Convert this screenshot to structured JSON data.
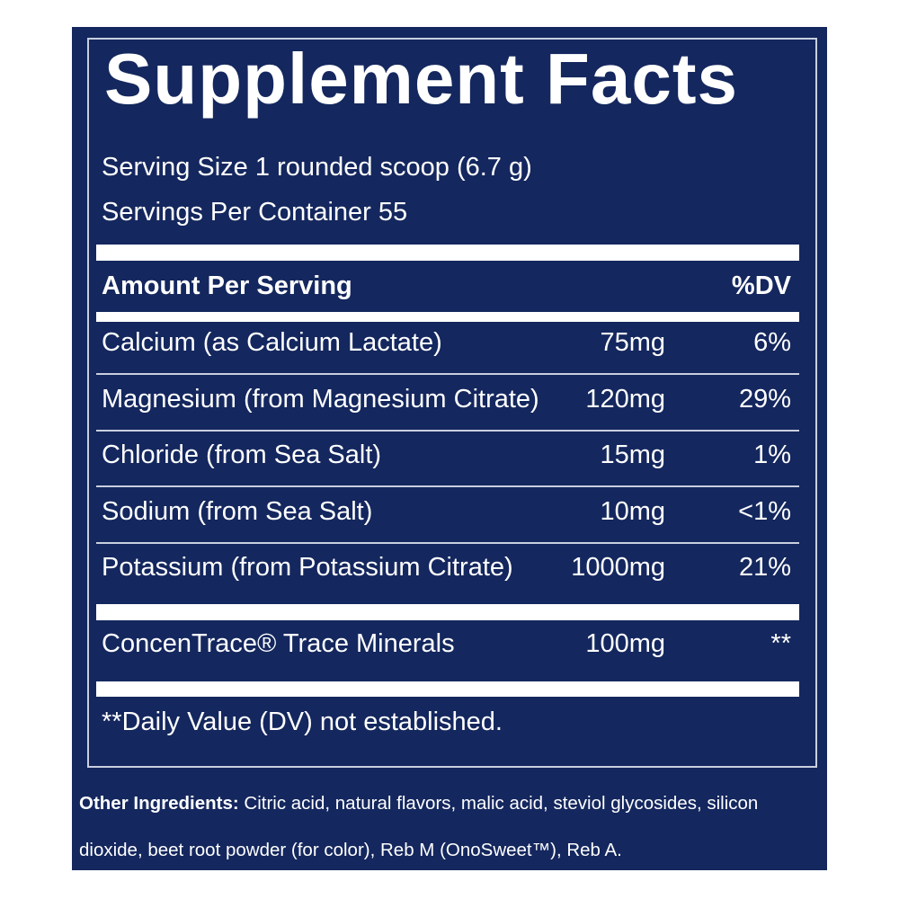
{
  "title": "Supplement Facts",
  "serving_size": "Serving Size 1 rounded scoop (6.7 g)",
  "servings_per_container": "Servings Per Container 55",
  "header": {
    "amount": "Amount Per Serving",
    "dv": "%DV"
  },
  "rows": [
    {
      "name": "Calcium (as Calcium Lactate)",
      "amount": "75mg",
      "dv": "6%"
    },
    {
      "name": "Magnesium (from Magnesium Citrate)",
      "amount": "120mg",
      "dv": "29%"
    },
    {
      "name": "Chloride (from Sea Salt)",
      "amount": "15mg",
      "dv": "1%"
    },
    {
      "name": "Sodium (from Sea Salt)",
      "amount": "10mg",
      "dv": "<1%"
    },
    {
      "name": "Potassium (from Potassium Citrate)",
      "amount": "1000mg",
      "dv": "21%"
    }
  ],
  "trace": {
    "name": "ConcenTrace® Trace Minerals",
    "amount": "100mg",
    "dv": "**"
  },
  "footnote": "**Daily Value (DV) not established.",
  "other_ingredients": {
    "label": "Other Ingredients:",
    "text": "Citric acid, natural flavors, malic acid, steviol glycosides, silicon dioxide, beet root powder (for color), Reb M (OnoSweet™), Reb A."
  }
}
